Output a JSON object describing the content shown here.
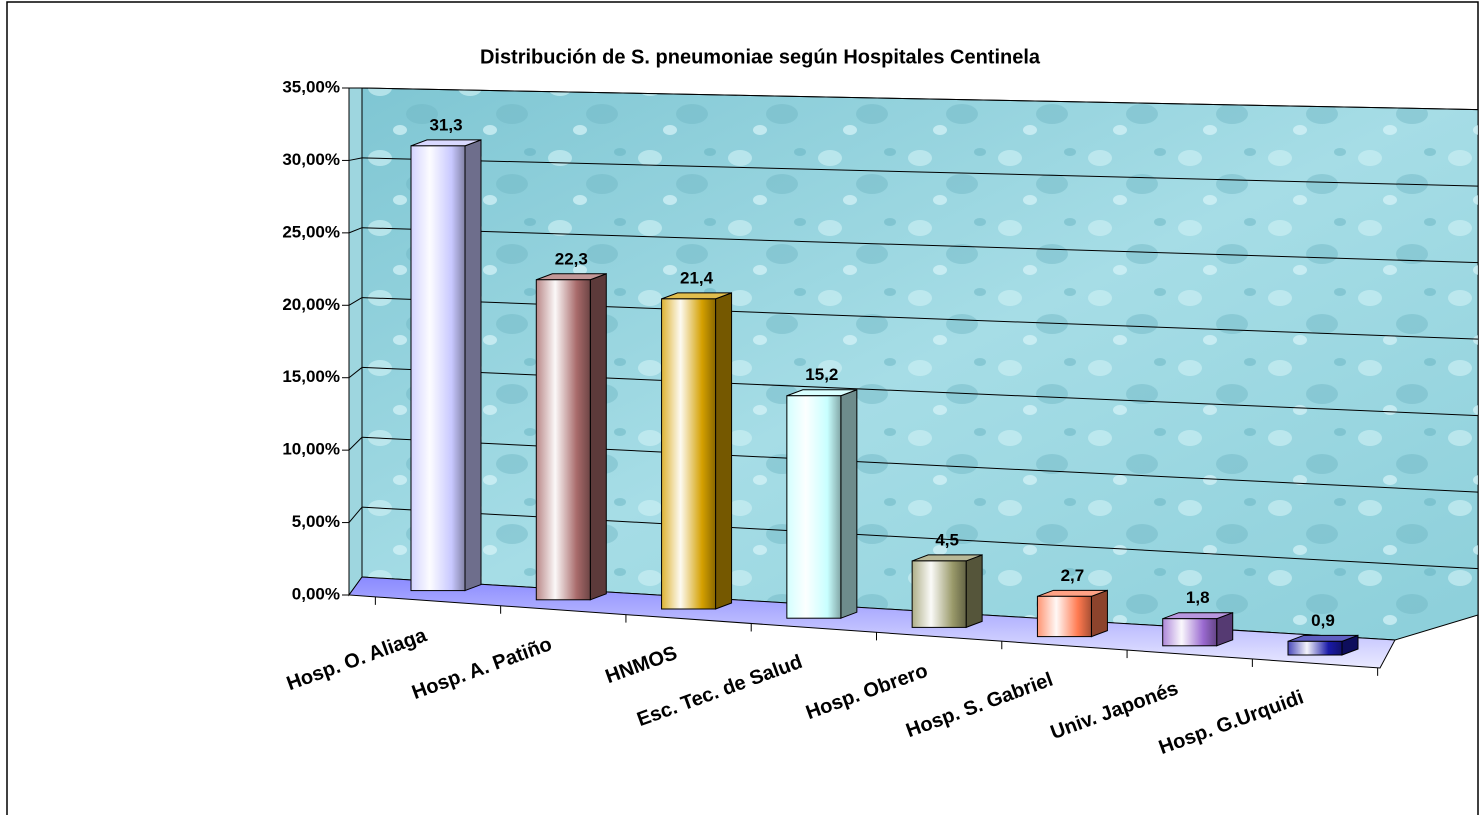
{
  "chart_data": {
    "type": "bar3d",
    "title": "Distribución de S. pneumoniae según Hospitales Centinela",
    "categories": [
      "Hosp. O.  Aliaga",
      "Hosp. A. Patiño",
      "HNMOS",
      "Esc. Tec. de Salud",
      "Hosp. Obrero",
      "Hosp. S. Gabriel",
      "Univ. Japonés",
      "Hosp. G.Urquidi"
    ],
    "values": [
      31.3,
      22.3,
      21.4,
      15.2,
      4.5,
      2.7,
      1.8,
      0.9
    ],
    "value_labels": [
      "31,3",
      "22,3",
      "21,4",
      "15,2",
      "4,5",
      "2,7",
      "1,8",
      "0,9"
    ],
    "colors": [
      "#c8c8ff",
      "#a86a6a",
      "#d4a000",
      "#c8ffff",
      "#9a9a6a",
      "#ff7a50",
      "#9a6ad0",
      "#1a1aa8"
    ],
    "ylim": [
      0,
      35
    ],
    "yticks": [
      {
        "value": 0,
        "label": "0,00%"
      },
      {
        "value": 5,
        "label": "5,00%"
      },
      {
        "value": 10,
        "label": "10,00%"
      },
      {
        "value": 15,
        "label": "15,00%"
      },
      {
        "value": 20,
        "label": "20,00%"
      },
      {
        "value": 25,
        "label": "25,00%"
      },
      {
        "value": 30,
        "label": "30,00%"
      },
      {
        "value": 35,
        "label": "35,00%"
      }
    ],
    "grid": true
  }
}
